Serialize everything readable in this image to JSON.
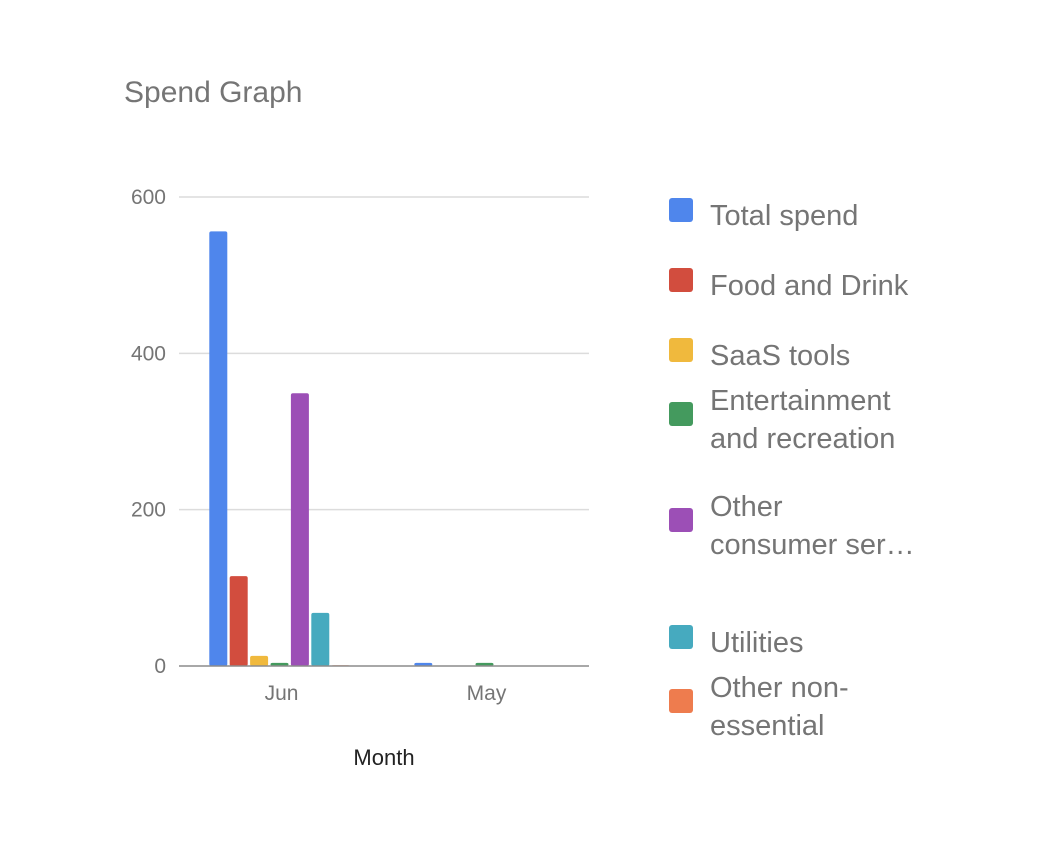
{
  "chart_data": {
    "type": "bar",
    "title": "Spend Graph",
    "xlabel": "Month",
    "ylabel": "",
    "ylim": [
      0,
      600
    ],
    "yticks": [
      0,
      200,
      400,
      600
    ],
    "grid": true,
    "legend_position": "right",
    "categories": [
      "Jun",
      "May"
    ],
    "series": [
      {
        "name": "Total spend",
        "color": "#4f86ec",
        "values": [
          556,
          4
        ],
        "legend_lines": [
          "Total spend"
        ]
      },
      {
        "name": "Food and Drink",
        "color": "#d24d3e",
        "values": [
          115,
          0
        ],
        "legend_lines": [
          "Food and Drink"
        ]
      },
      {
        "name": "SaaS tools",
        "color": "#f0b93d",
        "values": [
          13,
          0
        ],
        "legend_lines": [
          "SaaS tools"
        ]
      },
      {
        "name": "Entertainment and recreation",
        "color": "#449a5e",
        "values": [
          4,
          4
        ],
        "legend_lines": [
          "Entertainment",
          "and recreation"
        ]
      },
      {
        "name": "Other consumer ser…",
        "color": "#9c4fb6",
        "values": [
          349,
          0
        ],
        "legend_lines": [
          "Other",
          "consumer ser…"
        ]
      },
      {
        "name": "Utilities",
        "color": "#46aabf",
        "values": [
          68,
          0
        ],
        "legend_lines": [
          "Utilities"
        ]
      },
      {
        "name": "Other non-essential",
        "color": "#ee7c4e",
        "values": [
          1,
          0
        ],
        "legend_lines": [
          "Other non-",
          "essential"
        ]
      }
    ]
  }
}
